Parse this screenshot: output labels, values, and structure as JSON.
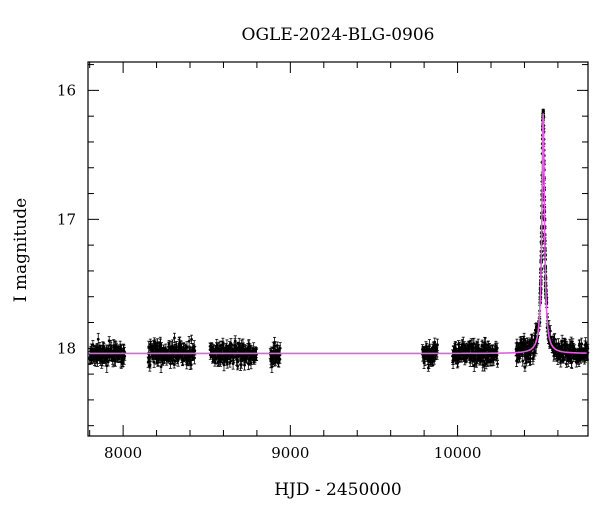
{
  "chart_data": {
    "type": "scatter",
    "title": "OGLE-2024-BLG-0906",
    "xlabel": "HJD - 2450000",
    "ylabel": "I magnitude",
    "xlim": [
      7790,
      10780
    ],
    "ylim": [
      18.68,
      15.78
    ],
    "y_inverted": true,
    "grid": false,
    "x_ticks": [
      {
        "value": 8000,
        "label": "8000"
      },
      {
        "value": 9000,
        "label": "9000"
      },
      {
        "value": 10000,
        "label": "10000"
      }
    ],
    "y_ticks": [
      {
        "value": 16,
        "label": "16"
      },
      {
        "value": 17,
        "label": "17"
      },
      {
        "value": 18,
        "label": "18"
      }
    ],
    "data_color": "#000000",
    "model_color": "#e060e0",
    "series": [
      {
        "kind": "observations_with_errorbars",
        "baseline_mag": 18.04,
        "baseline_scatter": 0.06,
        "errorbar_halfwidth": 0.035,
        "seasons": [
          [
            7800,
            8010
          ],
          [
            8150,
            8430
          ],
          [
            8520,
            8800
          ],
          [
            8880,
            8940
          ],
          [
            9790,
            9880
          ],
          [
            9970,
            10240
          ],
          [
            10350,
            10780
          ]
        ],
        "peak": {
          "t0": 10512,
          "min_mag": 16.18,
          "tE": 6
        }
      },
      {
        "kind": "model_curve",
        "baseline_mag": 18.04,
        "peak": {
          "t0": 10512,
          "min_mag": 16.18,
          "tE": 6
        }
      }
    ]
  }
}
